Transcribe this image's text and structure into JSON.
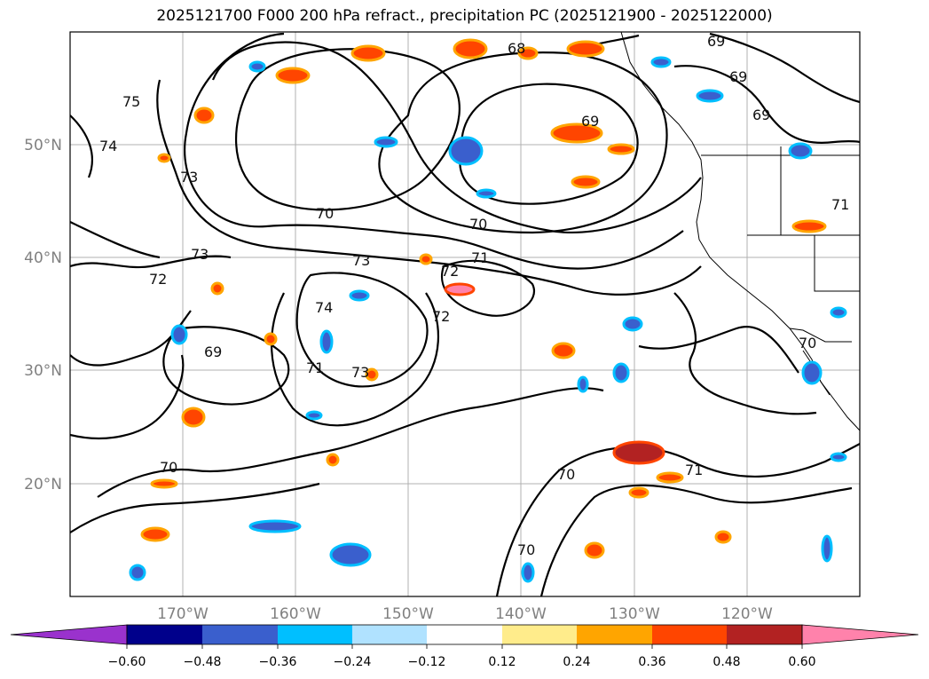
{
  "title": "2025121700 F000 200 hPa refract., precipitation PC (2025121900 - 2025122000)",
  "lat_labels": [
    "50°N",
    "40°N",
    "30°N",
    "20°N"
  ],
  "lon_labels": [
    "170°W",
    "160°W",
    "150°W",
    "140°W",
    "130°W",
    "120°W"
  ],
  "contour_labels": [
    "68",
    "69",
    "69",
    "69",
    "69",
    "75",
    "74",
    "73",
    "73",
    "72",
    "70",
    "73",
    "71",
    "72",
    "74",
    "72",
    "71",
    "69",
    "73",
    "70",
    "70",
    "71",
    "70",
    "70",
    "70",
    "71"
  ],
  "colorbar": {
    "ticks": [
      "−0.60",
      "−0.48",
      "−0.36",
      "−0.24",
      "−0.12",
      "0.12",
      "0.24",
      "0.36",
      "0.48",
      "0.60"
    ],
    "colors": [
      "#9a32cd",
      "#00008b",
      "#3a5fcd",
      "#00bfff",
      "#b0e2ff",
      "#ffffff",
      "#ffec8b",
      "#ffa500",
      "#ff4500",
      "#b22222",
      "#ff82ab"
    ]
  }
}
